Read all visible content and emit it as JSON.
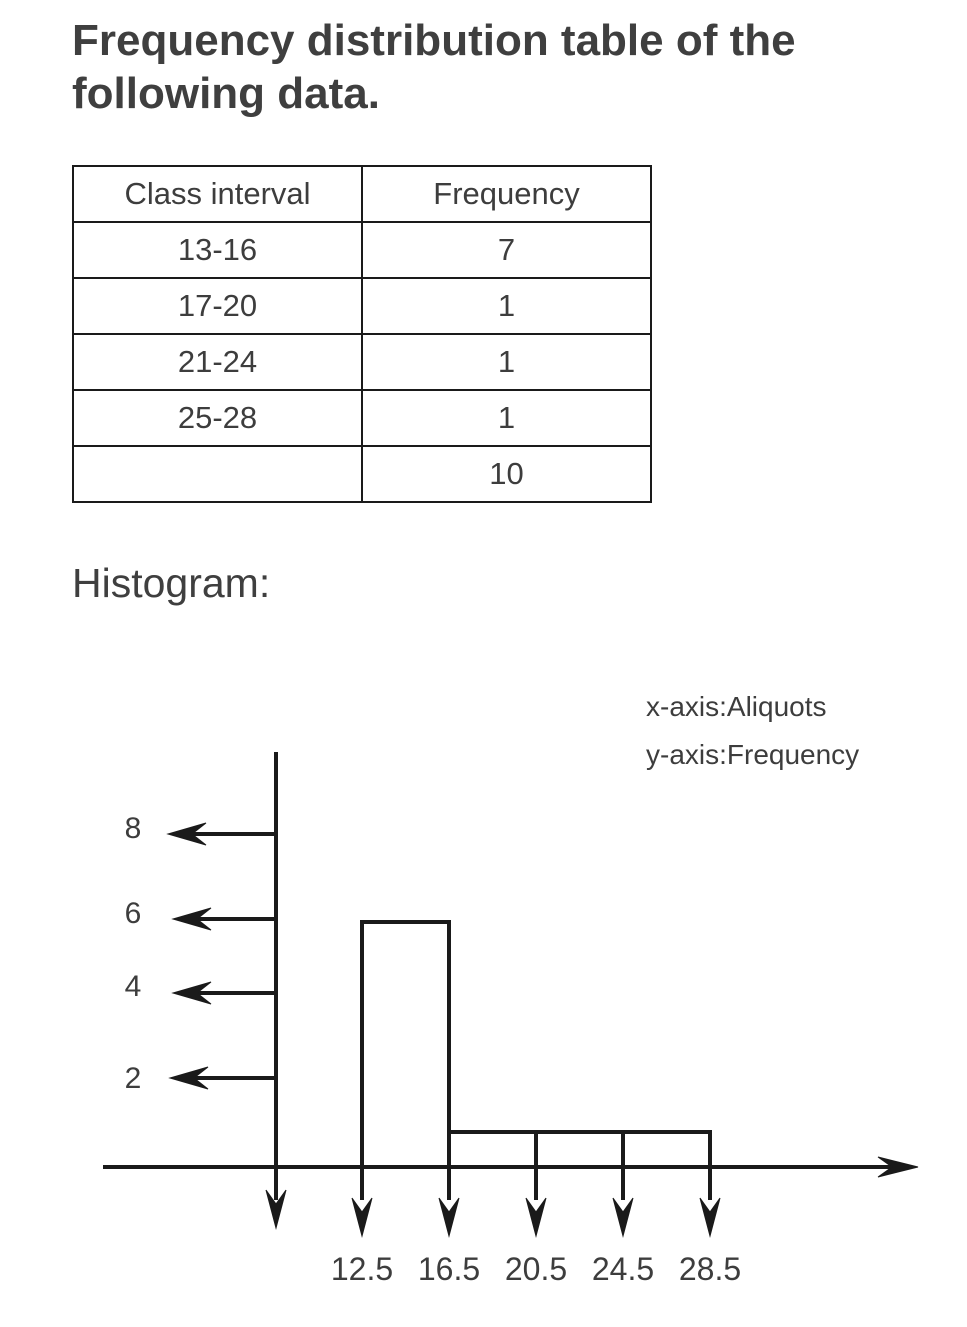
{
  "title": "Frequency distribution table of the following data.",
  "table": {
    "headers": [
      "Class interval",
      "Frequency"
    ],
    "rows": [
      [
        "13-16",
        "7"
      ],
      [
        "17-20",
        "1"
      ],
      [
        "21-24",
        "1"
      ],
      [
        "25-28",
        "1"
      ],
      [
        "",
        "10"
      ]
    ]
  },
  "histogram_label": "Histogram:",
  "chart_data": {
    "type": "bar",
    "notes": [
      "x-axis:Aliquots",
      "y-axis:Frequency"
    ],
    "x_ticks": [
      "12.5",
      "16.5",
      "20.5",
      "24.5",
      "28.5"
    ],
    "y_ticks": [
      "2",
      "4",
      "6",
      "8"
    ],
    "bins": [
      [
        12.5,
        16.5
      ],
      [
        16.5,
        20.5
      ],
      [
        20.5,
        24.5
      ],
      [
        24.5,
        28.5
      ]
    ],
    "values": [
      7,
      1,
      1,
      1
    ],
    "xlim": [
      12.5,
      28.5
    ],
    "ylim": [
      0,
      9
    ],
    "grid": false
  }
}
